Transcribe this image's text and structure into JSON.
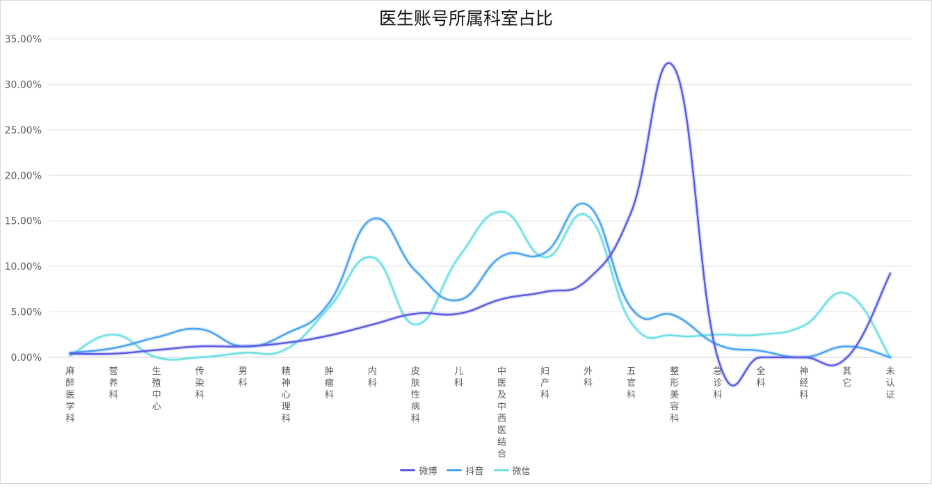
{
  "chart_data": {
    "type": "line",
    "title": "医生账号所属科室占比",
    "ylim": [
      0,
      35
    ],
    "yticks": [
      "0.00%",
      "5.00%",
      "10.00%",
      "15.00%",
      "20.00%",
      "25.00%",
      "30.00%",
      "35.00%"
    ],
    "categories": [
      "麻醉医学科",
      "营养科",
      "生殖中心",
      "传染科",
      "男科",
      "精神心理科",
      "肿瘤科",
      "内科",
      "皮肤性病科",
      "儿科",
      "中医及中西医结合",
      "妇产科",
      "外科",
      "五官科",
      "整形美容科",
      "急诊科",
      "全科",
      "神经科",
      "其它",
      "未认证"
    ],
    "series": [
      {
        "name": "微博",
        "color": "#5b5ce3",
        "values": [
          0.4,
          0.4,
          0.8,
          1.2,
          1.2,
          1.6,
          2.4,
          3.6,
          4.8,
          4.8,
          6.4,
          7.2,
          8.6,
          16.0,
          31.8,
          0.0,
          0.0,
          0.0,
          0.0,
          9.2
        ]
      },
      {
        "name": "抖音",
        "color": "#4aa3f0",
        "values": [
          0.5,
          1.0,
          2.2,
          3.1,
          1.2,
          2.6,
          6.0,
          15.2,
          9.5,
          6.3,
          11.1,
          11.5,
          16.7,
          5.4,
          4.6,
          1.4,
          0.7,
          0.0,
          1.2,
          0.0
        ]
      },
      {
        "name": "微信",
        "color": "#6ee0e5",
        "values": [
          0.2,
          2.5,
          0.0,
          0.0,
          0.5,
          0.9,
          5.5,
          11.0,
          3.6,
          11.0,
          16.0,
          11.0,
          15.5,
          3.8,
          2.4,
          2.5,
          2.5,
          3.5,
          7.0,
          0.0
        ]
      }
    ]
  }
}
